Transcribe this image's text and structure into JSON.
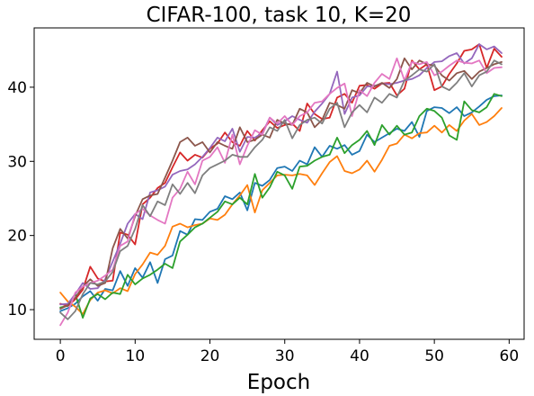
{
  "chart_data": {
    "type": "line",
    "title": "CIFAR-100, task 10, K=20",
    "xlabel": "Epoch",
    "ylabel": "",
    "xlim": [
      -3.5,
      62
    ],
    "ylim": [
      6,
      48
    ],
    "xticks": [
      0,
      10,
      20,
      30,
      40,
      50,
      60
    ],
    "yticks": [
      10,
      20,
      30,
      40
    ],
    "grid": false,
    "x": [
      0,
      1,
      2,
      3,
      4,
      5,
      6,
      7,
      8,
      9,
      10,
      11,
      12,
      13,
      14,
      15,
      16,
      17,
      18,
      19,
      20,
      21,
      22,
      23,
      24,
      25,
      26,
      27,
      28,
      29,
      30,
      31,
      32,
      33,
      34,
      35,
      36,
      37,
      38,
      39,
      40,
      41,
      42,
      43,
      44,
      45,
      46,
      47,
      48,
      49,
      50,
      51,
      52,
      53,
      54,
      55,
      56,
      57,
      58,
      59
    ],
    "series": [
      {
        "color": "#1f77b4",
        "values": [
          9.8,
          10.2,
          10.8,
          11.8,
          12.5,
          11.2,
          12.8,
          12.6,
          15.2,
          13.2,
          15.6,
          14.3,
          16.4,
          13.6,
          16.8,
          17.3,
          20.6,
          20.1,
          22.2,
          22.1,
          23.2,
          23.6,
          25.3,
          24.9,
          25.8,
          23.4,
          27.1,
          26.7,
          27.5,
          29.1,
          29.3,
          28.7,
          30.1,
          29.6,
          31.9,
          30.6,
          32.1,
          31.7,
          32.2,
          30.9,
          31.4,
          33.6,
          32.6,
          33.2,
          33.8,
          34.4,
          34.1,
          35.3,
          33.3,
          36.8,
          37.3,
          37.2,
          36.5,
          37.3,
          36.1,
          36.6,
          37.4,
          38.3,
          38.8,
          38.9
        ]
      },
      {
        "color": "#ff7f0e",
        "values": [
          12.3,
          11.1,
          10.4,
          9.4,
          11.3,
          12.3,
          12.6,
          12.2,
          12.9,
          12.5,
          14.8,
          16.1,
          17.7,
          17.4,
          18.6,
          21.2,
          21.6,
          21.1,
          21.4,
          21.6,
          22.3,
          22.1,
          22.8,
          24.2,
          25.4,
          26.8,
          23.1,
          26.1,
          27.1,
          28.1,
          28.2,
          28.1,
          28.3,
          28.1,
          26.8,
          28.4,
          29.9,
          30.7,
          28.7,
          28.4,
          28.9,
          30.1,
          28.6,
          30.2,
          32.1,
          32.4,
          33.6,
          33.1,
          33.8,
          33.9,
          34.8,
          33.9,
          34.9,
          34.1,
          35.5,
          36.4,
          34.9,
          35.3,
          36.1,
          37.2
        ]
      },
      {
        "color": "#2ca02c",
        "values": [
          10.3,
          10.5,
          12.1,
          8.9,
          11.5,
          12.1,
          11.4,
          12.3,
          12.1,
          14.7,
          13.4,
          14.2,
          14.7,
          15.4,
          16.2,
          15.6,
          19.2,
          20.1,
          21.1,
          21.6,
          22.4,
          23.2,
          24.6,
          24.2,
          25.1,
          24.2,
          28.3,
          25.1,
          26.5,
          28.6,
          28.1,
          26.3,
          29.3,
          29.4,
          30.1,
          30.6,
          30.9,
          33.2,
          31.1,
          32.2,
          32.9,
          34.1,
          32.2,
          34.9,
          33.6,
          34.8,
          33.6,
          33.9,
          36.1,
          37.1,
          36.8,
          35.9,
          33.5,
          32.9,
          38.1,
          36.9,
          36.6,
          37.3,
          39.1,
          38.8
        ]
      },
      {
        "color": "#d62728",
        "values": [
          10.8,
          10.5,
          11.4,
          12.7,
          15.8,
          14.2,
          13.8,
          13.9,
          20.4,
          20.1,
          18.8,
          24.2,
          25.1,
          26.4,
          27.1,
          29.2,
          31.2,
          30.1,
          30.9,
          30.5,
          31.7,
          32.4,
          33.9,
          32.6,
          32.1,
          34.1,
          32.8,
          34.2,
          35.4,
          34.5,
          34.9,
          35.1,
          34.1,
          37.8,
          36.4,
          35.7,
          35.9,
          38.6,
          39.1,
          37.9,
          40.2,
          40.3,
          39.8,
          40.5,
          40.6,
          38.9,
          39.8,
          43.6,
          42.4,
          43.1,
          39.6,
          40.1,
          41.8,
          43.2,
          44.9,
          45.1,
          45.8,
          42.6,
          45.2,
          44.1
        ]
      },
      {
        "color": "#9467bd",
        "values": [
          10.7,
          10.8,
          12.1,
          13.6,
          12.8,
          12.9,
          14.1,
          16.5,
          18.9,
          21.6,
          22.9,
          22.2,
          25.8,
          26.1,
          26.6,
          28.2,
          28.7,
          28.9,
          29.6,
          30.6,
          31.8,
          33.2,
          32.7,
          34.4,
          31.3,
          33.3,
          33.2,
          33.8,
          35.9,
          34.9,
          35.4,
          36.1,
          35.6,
          35.2,
          36.7,
          37.8,
          39.1,
          42.1,
          36.4,
          38.6,
          38.9,
          40.1,
          40.2,
          40.5,
          40.4,
          40.6,
          40.9,
          41.1,
          41.6,
          42.6,
          43.4,
          43.5,
          44.2,
          44.6,
          43.2,
          43.9,
          45.8,
          45.1,
          45.5,
          44.6
        ]
      },
      {
        "color": "#8c564b",
        "values": [
          10.1,
          10.6,
          11.6,
          13.1,
          14.1,
          13.2,
          13.6,
          18.3,
          20.9,
          19.6,
          22.6,
          24.9,
          25.4,
          25.6,
          27.8,
          30.1,
          32.6,
          33.2,
          32.1,
          32.6,
          31.2,
          32.6,
          32.1,
          31.7,
          34.6,
          32.6,
          32.9,
          33.6,
          33.2,
          35.6,
          35.1,
          34.9,
          37.1,
          36.6,
          34.6,
          35.6,
          37.9,
          37.6,
          37.1,
          39.6,
          39.2,
          40.6,
          40.1,
          40.6,
          39.9,
          41.1,
          43.9,
          42.4,
          43.6,
          43.1,
          42.9,
          41.6,
          40.9,
          41.9,
          42.2,
          41.1,
          42.1,
          42.6,
          43.1,
          43.4
        ]
      },
      {
        "color": "#e377c2",
        "values": [
          7.9,
          9.6,
          12.3,
          13.1,
          13.6,
          13.9,
          14.6,
          15.4,
          18.6,
          19.2,
          22.9,
          23.6,
          22.7,
          22.1,
          21.6,
          25.1,
          26.3,
          28.6,
          26.9,
          30.1,
          30.6,
          31.9,
          29.8,
          33.6,
          29.6,
          32.1,
          34.2,
          33.6,
          35.9,
          35.1,
          36.1,
          34.9,
          36.1,
          36.6,
          37.9,
          38.1,
          39.1,
          39.9,
          40.5,
          36.1,
          39.6,
          38.8,
          40.6,
          41.8,
          41.1,
          43.9,
          40.9,
          43.4,
          43.1,
          43.4,
          41.6,
          42.1,
          42.9,
          43.6,
          43.3,
          43.2,
          43.6,
          41.9,
          42.6,
          42.7
        ]
      },
      {
        "color": "#7f7f7f",
        "values": [
          9.6,
          8.7,
          9.8,
          12.1,
          13.6,
          13.4,
          13.8,
          15.1,
          17.9,
          18.6,
          20.9,
          24.1,
          22.6,
          24.6,
          24.1,
          26.9,
          25.6,
          27.1,
          25.7,
          28.1,
          29.1,
          29.6,
          30.1,
          30.9,
          30.6,
          30.6,
          31.9,
          32.9,
          34.6,
          34.1,
          35.6,
          33.1,
          34.9,
          35.6,
          35.9,
          35.1,
          37.1,
          37.9,
          34.6,
          36.6,
          37.6,
          36.6,
          38.6,
          37.9,
          39.1,
          38.6,
          40.9,
          41.6,
          42.4,
          42.1,
          43.1,
          40.1,
          39.6,
          40.6,
          41.9,
          40.1,
          41.6,
          42.1,
          43.6,
          43.1
        ]
      }
    ]
  }
}
